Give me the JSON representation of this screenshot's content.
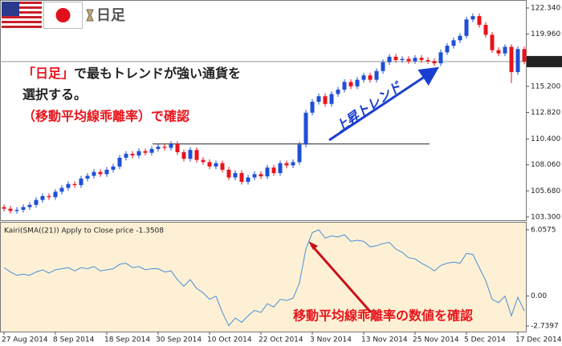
{
  "chart_data": [
    {
      "type": "candlestick",
      "label": "日足",
      "up_color": "#1f4fd6",
      "down_color": "#e8141b",
      "ylim": [
        103.0,
        123.07
      ],
      "yticks": [
        {
          "value": 122.34,
          "label": "122.340"
        },
        {
          "value": 119.96,
          "label": "119.960"
        },
        {
          "value": 115.2,
          "label": "115.200"
        },
        {
          "value": 112.82,
          "label": "112.820"
        },
        {
          "value": 110.4,
          "label": "110.400"
        },
        {
          "value": 108.06,
          "label": "108.060"
        },
        {
          "value": 105.68,
          "label": "105.680"
        },
        {
          "value": 103.3,
          "label": "103.300"
        }
      ],
      "grid": false,
      "last_price": 117.457,
      "horizontal_line": 109.95,
      "open": [
        104.2,
        104.05,
        103.85,
        103.95,
        104.2,
        104.4,
        104.85,
        105.2,
        105.1,
        105.6,
        105.95,
        106.3,
        106.2,
        106.8,
        107.05,
        107.4,
        107.2,
        107.6,
        107.9,
        108.7,
        109.05,
        108.9,
        109.3,
        109.15,
        109.5,
        109.7,
        109.6,
        109.95,
        109.2,
        108.6,
        109.4,
        108.5,
        108.3,
        107.9,
        108.2,
        107.6,
        106.9,
        107.3,
        106.5,
        106.9,
        107.2,
        107.0,
        107.8,
        107.3,
        108.2,
        108.0,
        108.3,
        109.9,
        112.8,
        113.8,
        114.3,
        113.6,
        114.5,
        114.9,
        115.6,
        115.2,
        115.8,
        116.2,
        115.8,
        116.6,
        117.4,
        117.9,
        117.6,
        117.7,
        117.5,
        117.8,
        117.6,
        117.5,
        117.3,
        118.3,
        118.9,
        119.4,
        119.8,
        121.3,
        121.6,
        120.8,
        119.9,
        118.5,
        118.2,
        118.8,
        116.5,
        118.6
      ],
      "high": [
        104.45,
        104.3,
        104.2,
        104.45,
        104.65,
        105.1,
        105.45,
        105.45,
        105.85,
        106.2,
        106.55,
        106.55,
        107.05,
        107.3,
        107.65,
        107.65,
        107.85,
        108.15,
        108.95,
        109.3,
        109.3,
        109.55,
        109.55,
        109.75,
        109.95,
        109.95,
        110.2,
        110.2,
        109.45,
        109.65,
        109.65,
        108.75,
        108.55,
        108.45,
        108.45,
        107.85,
        107.55,
        107.55,
        107.15,
        107.45,
        107.45,
        108.05,
        108.05,
        108.45,
        108.45,
        108.55,
        110.15,
        113.05,
        114.05,
        114.55,
        114.55,
        114.75,
        115.15,
        115.85,
        115.85,
        116.05,
        116.45,
        116.45,
        116.85,
        117.65,
        118.15,
        118.15,
        117.95,
        117.95,
        118.05,
        118.05,
        117.85,
        117.75,
        118.55,
        119.15,
        119.65,
        120.05,
        121.55,
        121.85,
        121.85,
        121.05,
        120.15,
        118.75,
        119.05,
        119.05,
        118.85,
        118.85
      ],
      "low": [
        103.8,
        103.6,
        103.6,
        103.7,
        103.95,
        104.15,
        104.6,
        104.85,
        104.85,
        105.35,
        105.7,
        105.95,
        105.95,
        106.55,
        106.8,
        106.95,
        106.95,
        107.35,
        107.65,
        108.45,
        108.65,
        108.65,
        108.9,
        108.9,
        109.25,
        109.35,
        109.35,
        108.95,
        108.35,
        108.35,
        108.25,
        108.05,
        107.65,
        107.65,
        107.35,
        106.65,
        106.65,
        106.25,
        106.25,
        106.65,
        106.75,
        106.75,
        107.05,
        107.05,
        107.75,
        107.75,
        108.05,
        109.65,
        112.55,
        113.55,
        113.35,
        113.35,
        114.25,
        114.65,
        114.95,
        114.95,
        115.55,
        115.55,
        115.55,
        116.35,
        117.15,
        117.35,
        117.35,
        117.25,
        117.25,
        117.35,
        117.25,
        117.05,
        117.05,
        118.05,
        118.65,
        119.15,
        119.55,
        121.05,
        120.55,
        119.65,
        118.25,
        117.95,
        117.95,
        115.5,
        116.25,
        117.2
      ],
      "close": [
        104.05,
        103.85,
        103.95,
        104.2,
        104.4,
        104.85,
        105.2,
        105.1,
        105.6,
        105.95,
        106.3,
        106.2,
        106.8,
        107.05,
        107.4,
        107.2,
        107.6,
        107.9,
        108.7,
        109.05,
        108.9,
        109.3,
        109.15,
        109.5,
        109.7,
        109.6,
        109.95,
        109.2,
        108.6,
        109.4,
        108.5,
        108.3,
        107.9,
        108.2,
        107.6,
        106.9,
        107.3,
        106.5,
        106.9,
        107.2,
        107.0,
        107.8,
        107.3,
        108.2,
        108.0,
        108.3,
        109.9,
        112.8,
        113.8,
        114.3,
        113.6,
        114.5,
        114.9,
        115.6,
        115.2,
        115.8,
        116.2,
        115.8,
        116.6,
        117.4,
        117.9,
        117.6,
        117.7,
        117.5,
        117.8,
        117.6,
        117.5,
        117.3,
        118.3,
        118.9,
        119.4,
        119.8,
        121.3,
        121.6,
        120.8,
        119.9,
        118.5,
        118.2,
        118.8,
        116.5,
        118.6,
        117.457
      ],
      "annotations": [
        {
          "text": "「日足」",
          "color": "#e8141b"
        },
        {
          "text": "で最もトレンドが強い通貨を",
          "color": "#222222"
        },
        {
          "text": "選択する。",
          "color": "#222222"
        },
        {
          "text": "（移動平均線乖離率）で確認",
          "color": "#e8141b"
        },
        {
          "text": "上昇トレンド",
          "color": "#1a3fd0"
        }
      ]
    },
    {
      "type": "line",
      "title": "Kairi(SMA((21)) Apply to Close price -1.3508",
      "color": "#4a8fd6",
      "ylim": [
        -3.17,
        6.56
      ],
      "yticks": [
        6.0575,
        {
          "value": 0,
          "label": "0.00"
        },
        -2.7397
      ],
      "categories": [
        "27 Aug 2014",
        null,
        null,
        null,
        null,
        null,
        null,
        null,
        "8 Sep 2014",
        null,
        null,
        null,
        null,
        null,
        null,
        null,
        "18 Sep 2014",
        null,
        null,
        null,
        null,
        null,
        null,
        null,
        "30 Sep 2014",
        null,
        null,
        null,
        null,
        null,
        null,
        null,
        "10 Oct 2014",
        null,
        null,
        null,
        null,
        null,
        null,
        null,
        "22 Oct 2014",
        null,
        null,
        null,
        null,
        null,
        null,
        null,
        "3 Nov 2014",
        null,
        null,
        null,
        null,
        null,
        null,
        null,
        "13 Nov 2014",
        null,
        null,
        null,
        null,
        null,
        null,
        null,
        "25 Nov 2014",
        null,
        null,
        null,
        null,
        null,
        null,
        null,
        "5 Dec 2014",
        null,
        null,
        null,
        null,
        null,
        null,
        null,
        "17 Dec 2014",
        null
      ],
      "values": [
        2.6,
        2.2,
        1.9,
        2.0,
        1.9,
        2.2,
        2.4,
        2.1,
        2.4,
        2.5,
        2.6,
        2.3,
        2.6,
        2.5,
        2.7,
        2.3,
        2.4,
        2.5,
        2.9,
        3.0,
        2.6,
        2.7,
        2.4,
        2.5,
        2.5,
        2.2,
        2.3,
        1.5,
        0.9,
        1.5,
        0.7,
        0.3,
        -0.3,
        0.0,
        -1.5,
        -2.7,
        -2.0,
        -2.4,
        -1.8,
        -1.3,
        -1.5,
        -0.7,
        -1.0,
        -0.3,
        -0.4,
        -0.2,
        1.2,
        4.3,
        5.8,
        6.0575,
        5.3,
        5.5,
        5.4,
        5.6,
        5.0,
        5.1,
        5.0,
        4.5,
        4.6,
        4.8,
        4.9,
        4.3,
        4.0,
        3.5,
        3.4,
        3.0,
        2.7,
        2.3,
        2.8,
        3.0,
        3.1,
        3.0,
        3.9,
        3.8,
        2.6,
        1.4,
        -0.3,
        -0.6,
        0.0,
        -1.8,
        -0.1,
        -1.3508
      ],
      "annotations": [
        {
          "text": "移動平均線乖離率の数値を確認",
          "color": "#e8141b"
        }
      ]
    }
  ]
}
